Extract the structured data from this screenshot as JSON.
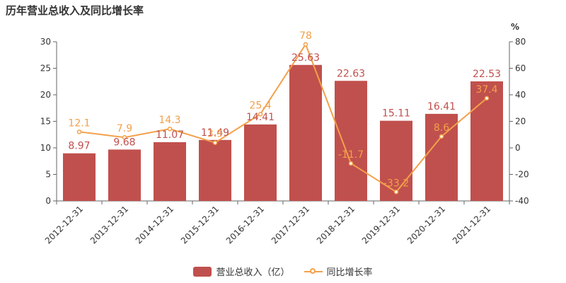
{
  "title": "历年营业总收入及同比增长率",
  "colors": {
    "bar": "#c0504d",
    "line": "#f3a04b",
    "axis": "#666666",
    "grid": "#e0e0e0",
    "text": "#333333"
  },
  "legend": {
    "bar_label": "营业总收入（亿）",
    "line_label": "同比增长率"
  },
  "chart_data": {
    "type": "bar+line",
    "categories": [
      "2012-12-31",
      "2013-12-31",
      "2014-12-31",
      "2015-12-31",
      "2016-12-31",
      "2017-12-31",
      "2018-12-31",
      "2019-12-31",
      "2020-12-31",
      "2021-12-31"
    ],
    "series": [
      {
        "name": "营业总收入（亿）",
        "type": "bar",
        "axis": "left",
        "values": [
          8.97,
          9.68,
          11.07,
          11.49,
          14.41,
          25.63,
          22.63,
          15.11,
          16.41,
          22.53
        ]
      },
      {
        "name": "同比增长率",
        "type": "line",
        "axis": "right",
        "values": [
          12.1,
          7.9,
          14.3,
          3.9,
          25.4,
          78,
          -11.7,
          -33.2,
          8.6,
          37.4
        ],
        "labels": [
          "12.1",
          "7.9",
          "14.3",
          "3.9",
          "25.4",
          "78",
          "-11.7",
          "-33.2",
          "8.6",
          "37.4"
        ]
      }
    ],
    "y_left": {
      "min": 0,
      "max": 30,
      "ticks": [
        0,
        5,
        10,
        15,
        20,
        25,
        30
      ]
    },
    "y_right": {
      "min": -40,
      "max": 80,
      "ticks": [
        -40,
        -20,
        0,
        20,
        40,
        60,
        80
      ],
      "unit": "%"
    },
    "grid": false,
    "legend_position": "bottom-center"
  }
}
